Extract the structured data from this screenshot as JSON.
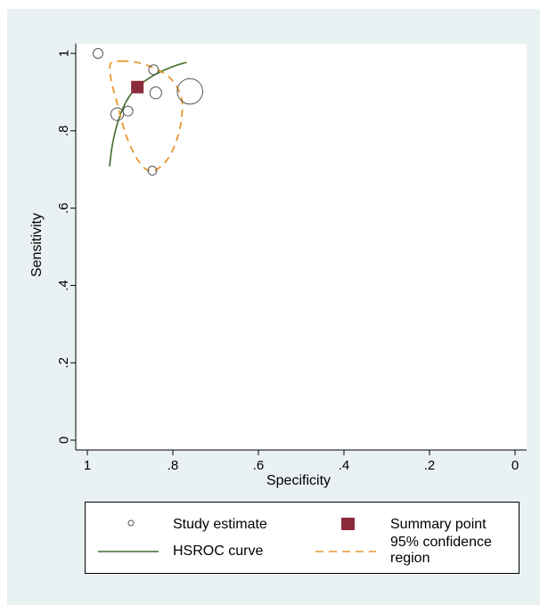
{
  "chart_data": {
    "type": "scatter",
    "title": "",
    "xlabel": "Specificity",
    "ylabel": "Sensitivity",
    "xlim": [
      1,
      0
    ],
    "ylim": [
      0,
      1
    ],
    "x_reversed": true,
    "xticks": [
      {
        "value": 1,
        "label": "1"
      },
      {
        "value": 0.8,
        "label": ".8"
      },
      {
        "value": 0.6,
        "label": ".6"
      },
      {
        "value": 0.4,
        "label": ".4"
      },
      {
        "value": 0.2,
        "label": ".2"
      },
      {
        "value": 0,
        "label": "0"
      }
    ],
    "yticks": [
      {
        "value": 0,
        "label": "0"
      },
      {
        "value": 0.2,
        "label": ".2"
      },
      {
        "value": 0.4,
        "label": ".4"
      },
      {
        "value": 0.6,
        "label": ".6"
      },
      {
        "value": 0.8,
        "label": ".8"
      },
      {
        "value": 1,
        "label": "1"
      }
    ],
    "grid": false,
    "legend_position": "bottom",
    "series": [
      {
        "name": "Study estimate",
        "kind": "circles",
        "color": "#555555",
        "points": [
          {
            "x": 0.975,
            "y": 1.0,
            "size": 1
          },
          {
            "x": 0.845,
            "y": 0.958,
            "size": 1
          },
          {
            "x": 0.84,
            "y": 0.898,
            "size": 1.2
          },
          {
            "x": 0.76,
            "y": 0.902,
            "size": 2.6
          },
          {
            "x": 0.93,
            "y": 0.843,
            "size": 1.3
          },
          {
            "x": 0.905,
            "y": 0.851,
            "size": 1
          },
          {
            "x": 0.848,
            "y": 0.697,
            "size": 0.9
          }
        ]
      },
      {
        "name": "Summary point",
        "kind": "square",
        "color": "#8b2b3a",
        "points": [
          {
            "x": 0.883,
            "y": 0.913
          }
        ]
      },
      {
        "name": "HSROC curve",
        "kind": "line",
        "color": "#3f6b2a",
        "points": [
          {
            "x": 0.948,
            "y": 0.708
          },
          {
            "x": 0.942,
            "y": 0.76
          },
          {
            "x": 0.932,
            "y": 0.81
          },
          {
            "x": 0.918,
            "y": 0.855
          },
          {
            "x": 0.9,
            "y": 0.892
          },
          {
            "x": 0.878,
            "y": 0.918
          },
          {
            "x": 0.85,
            "y": 0.94
          },
          {
            "x": 0.82,
            "y": 0.957
          },
          {
            "x": 0.79,
            "y": 0.97
          },
          {
            "x": 0.768,
            "y": 0.977
          }
        ]
      },
      {
        "name": "95% confidence region",
        "kind": "closed-dashed",
        "color": "#e8962e",
        "points": [
          {
            "x": 0.92,
            "y": 0.98
          },
          {
            "x": 0.89,
            "y": 0.978
          },
          {
            "x": 0.85,
            "y": 0.965
          },
          {
            "x": 0.805,
            "y": 0.935
          },
          {
            "x": 0.78,
            "y": 0.885
          },
          {
            "x": 0.78,
            "y": 0.83
          },
          {
            "x": 0.79,
            "y": 0.78
          },
          {
            "x": 0.81,
            "y": 0.73
          },
          {
            "x": 0.838,
            "y": 0.7
          },
          {
            "x": 0.862,
            "y": 0.7
          },
          {
            "x": 0.885,
            "y": 0.73
          },
          {
            "x": 0.91,
            "y": 0.79
          },
          {
            "x": 0.93,
            "y": 0.87
          },
          {
            "x": 0.945,
            "y": 0.935
          },
          {
            "x": 0.945,
            "y": 0.975
          }
        ]
      }
    ]
  },
  "legend": {
    "study_label": "Study estimate",
    "summary_label": "Summary point",
    "hsroc_label": "HSROC curve",
    "ci_label_line1": "95% confidence",
    "ci_label_line2": "region"
  },
  "colors": {
    "background": "#eaf1f3",
    "plot_area": "#ffffff",
    "summary_point": "#8b2b3a",
    "hsroc_curve": "#3f6b2a",
    "confidence_region": "#e8962e",
    "study_marker": "#555555"
  }
}
